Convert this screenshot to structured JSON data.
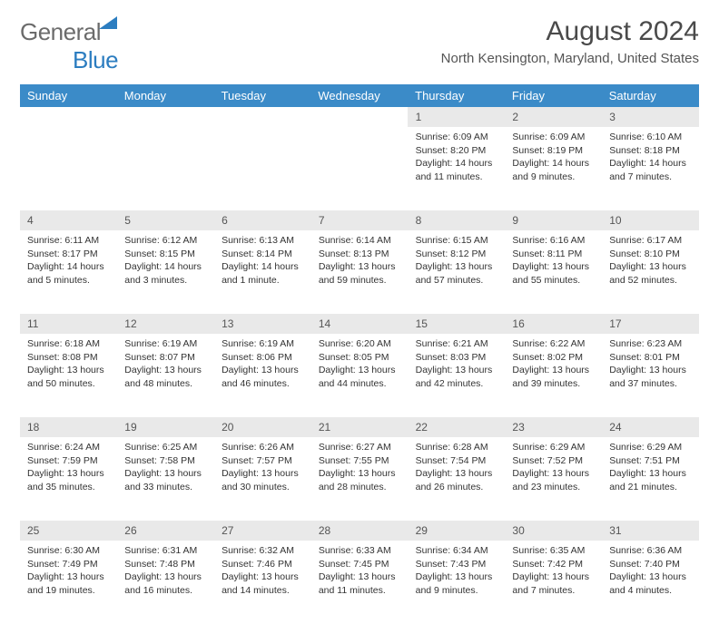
{
  "logo": {
    "part1": "General",
    "part2": "Blue"
  },
  "title": "August 2024",
  "location": "North Kensington, Maryland, United States",
  "headers": [
    "Sunday",
    "Monday",
    "Tuesday",
    "Wednesday",
    "Thursday",
    "Friday",
    "Saturday"
  ],
  "header_bg": "#3b8bc8",
  "daynum_bg": "#e9e9e9",
  "weeks": [
    [
      null,
      null,
      null,
      null,
      {
        "n": "1",
        "sr": "6:09 AM",
        "ss": "8:20 PM",
        "dl": "14 hours and 11 minutes."
      },
      {
        "n": "2",
        "sr": "6:09 AM",
        "ss": "8:19 PM",
        "dl": "14 hours and 9 minutes."
      },
      {
        "n": "3",
        "sr": "6:10 AM",
        "ss": "8:18 PM",
        "dl": "14 hours and 7 minutes."
      }
    ],
    [
      {
        "n": "4",
        "sr": "6:11 AM",
        "ss": "8:17 PM",
        "dl": "14 hours and 5 minutes."
      },
      {
        "n": "5",
        "sr": "6:12 AM",
        "ss": "8:15 PM",
        "dl": "14 hours and 3 minutes."
      },
      {
        "n": "6",
        "sr": "6:13 AM",
        "ss": "8:14 PM",
        "dl": "14 hours and 1 minute."
      },
      {
        "n": "7",
        "sr": "6:14 AM",
        "ss": "8:13 PM",
        "dl": "13 hours and 59 minutes."
      },
      {
        "n": "8",
        "sr": "6:15 AM",
        "ss": "8:12 PM",
        "dl": "13 hours and 57 minutes."
      },
      {
        "n": "9",
        "sr": "6:16 AM",
        "ss": "8:11 PM",
        "dl": "13 hours and 55 minutes."
      },
      {
        "n": "10",
        "sr": "6:17 AM",
        "ss": "8:10 PM",
        "dl": "13 hours and 52 minutes."
      }
    ],
    [
      {
        "n": "11",
        "sr": "6:18 AM",
        "ss": "8:08 PM",
        "dl": "13 hours and 50 minutes."
      },
      {
        "n": "12",
        "sr": "6:19 AM",
        "ss": "8:07 PM",
        "dl": "13 hours and 48 minutes."
      },
      {
        "n": "13",
        "sr": "6:19 AM",
        "ss": "8:06 PM",
        "dl": "13 hours and 46 minutes."
      },
      {
        "n": "14",
        "sr": "6:20 AM",
        "ss": "8:05 PM",
        "dl": "13 hours and 44 minutes."
      },
      {
        "n": "15",
        "sr": "6:21 AM",
        "ss": "8:03 PM",
        "dl": "13 hours and 42 minutes."
      },
      {
        "n": "16",
        "sr": "6:22 AM",
        "ss": "8:02 PM",
        "dl": "13 hours and 39 minutes."
      },
      {
        "n": "17",
        "sr": "6:23 AM",
        "ss": "8:01 PM",
        "dl": "13 hours and 37 minutes."
      }
    ],
    [
      {
        "n": "18",
        "sr": "6:24 AM",
        "ss": "7:59 PM",
        "dl": "13 hours and 35 minutes."
      },
      {
        "n": "19",
        "sr": "6:25 AM",
        "ss": "7:58 PM",
        "dl": "13 hours and 33 minutes."
      },
      {
        "n": "20",
        "sr": "6:26 AM",
        "ss": "7:57 PM",
        "dl": "13 hours and 30 minutes."
      },
      {
        "n": "21",
        "sr": "6:27 AM",
        "ss": "7:55 PM",
        "dl": "13 hours and 28 minutes."
      },
      {
        "n": "22",
        "sr": "6:28 AM",
        "ss": "7:54 PM",
        "dl": "13 hours and 26 minutes."
      },
      {
        "n": "23",
        "sr": "6:29 AM",
        "ss": "7:52 PM",
        "dl": "13 hours and 23 minutes."
      },
      {
        "n": "24",
        "sr": "6:29 AM",
        "ss": "7:51 PM",
        "dl": "13 hours and 21 minutes."
      }
    ],
    [
      {
        "n": "25",
        "sr": "6:30 AM",
        "ss": "7:49 PM",
        "dl": "13 hours and 19 minutes."
      },
      {
        "n": "26",
        "sr": "6:31 AM",
        "ss": "7:48 PM",
        "dl": "13 hours and 16 minutes."
      },
      {
        "n": "27",
        "sr": "6:32 AM",
        "ss": "7:46 PM",
        "dl": "13 hours and 14 minutes."
      },
      {
        "n": "28",
        "sr": "6:33 AM",
        "ss": "7:45 PM",
        "dl": "13 hours and 11 minutes."
      },
      {
        "n": "29",
        "sr": "6:34 AM",
        "ss": "7:43 PM",
        "dl": "13 hours and 9 minutes."
      },
      {
        "n": "30",
        "sr": "6:35 AM",
        "ss": "7:42 PM",
        "dl": "13 hours and 7 minutes."
      },
      {
        "n": "31",
        "sr": "6:36 AM",
        "ss": "7:40 PM",
        "dl": "13 hours and 4 minutes."
      }
    ]
  ],
  "labels": {
    "sunrise": "Sunrise:",
    "sunset": "Sunset:",
    "daylight": "Daylight:"
  }
}
